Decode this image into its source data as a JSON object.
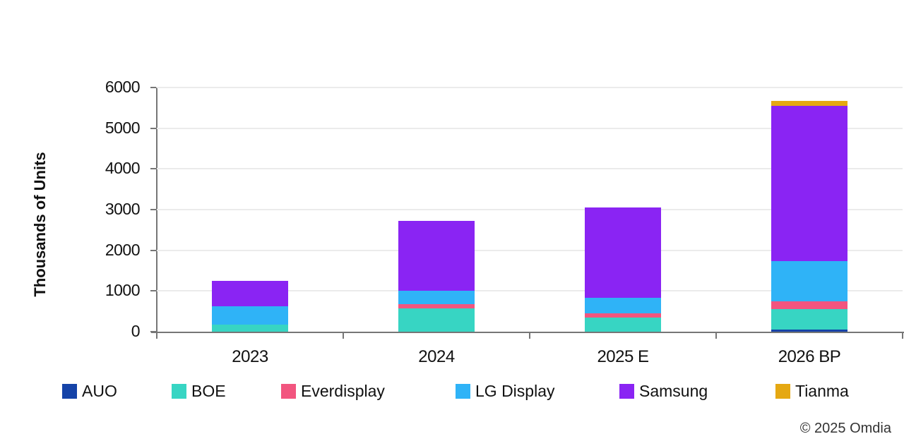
{
  "chart_data": {
    "type": "bar",
    "stacked": true,
    "title": "",
    "ylabel": "Thousands of Units",
    "xlabel": "",
    "categories": [
      "2023",
      "2024",
      "2025 E",
      "2026 BP"
    ],
    "series": [
      {
        "name": "AUO",
        "color": "#1543a8",
        "values": [
          0,
          0,
          0,
          60
        ]
      },
      {
        "name": "BOE",
        "color": "#37d5c3",
        "values": [
          180,
          580,
          340,
          490
        ]
      },
      {
        "name": "Everdisplay",
        "color": "#f2557f",
        "values": [
          0,
          105,
          105,
          190
        ]
      },
      {
        "name": "LG Display",
        "color": "#2fb3f7",
        "values": [
          450,
          330,
          385,
          1000
        ]
      },
      {
        "name": "Samsung",
        "color": "#8a24f3",
        "values": [
          625,
          1700,
          2225,
          3810
        ]
      },
      {
        "name": "Tianma",
        "color": "#e5a812",
        "values": [
          0,
          0,
          0,
          120
        ]
      }
    ],
    "totals": [
      1255,
      2715,
      3055,
      5670
    ],
    "ylim": [
      0,
      6000
    ],
    "yticks": [
      "0",
      "1000",
      "2000",
      "3000",
      "4000",
      "5000",
      "6000"
    ],
    "grid": true,
    "legend_position": "bottom"
  },
  "footer": {
    "copyright": "© 2025 Omdia"
  },
  "colors": {
    "axis": "#767676",
    "gridline": "#ebebeb",
    "text": "#111111"
  }
}
